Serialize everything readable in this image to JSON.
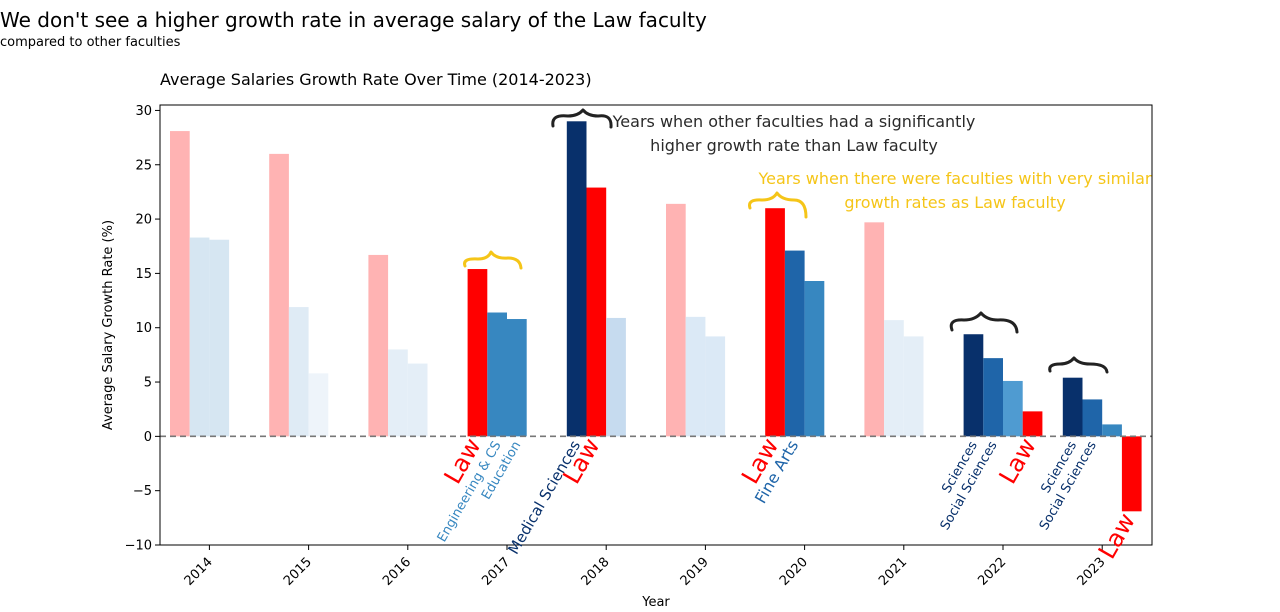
{
  "header": {
    "title": "We don't see a higher growth rate in average salary of the Law faculty",
    "subtitle": "compared to other faculties"
  },
  "chart_data": {
    "type": "bar",
    "title": "Average Salaries Growth Rate Over Time (2014-2023)",
    "xlabel": "Year",
    "ylabel": "Average Salary Growth Rate (%)",
    "ylim": [
      -10,
      30.5
    ],
    "yticks": [
      30,
      25,
      20,
      15,
      10,
      5,
      0,
      -5,
      -10
    ],
    "ytick_labels": [
      "30",
      "25",
      "20",
      "15",
      "10",
      "5",
      "0",
      "−5",
      "−10"
    ],
    "grid": false,
    "zero_line": {
      "value": 0,
      "style": "dashed",
      "color": "#777777"
    },
    "years": [
      {
        "label": "2014",
        "bars": [
          {
            "value": 28.1,
            "color": "#ffb3b3"
          },
          {
            "value": 18.3,
            "color": "#d6e6f2"
          },
          {
            "value": 18.1,
            "color": "#d6e6f2"
          }
        ]
      },
      {
        "label": "2015",
        "bars": [
          {
            "value": 26.0,
            "color": "#ffb3b3"
          },
          {
            "value": 11.9,
            "color": "#dfebf5"
          },
          {
            "value": 5.8,
            "color": "#eef4fa"
          }
        ]
      },
      {
        "label": "2016",
        "bars": [
          {
            "value": 16.7,
            "color": "#ffb3b3"
          },
          {
            "value": 8.0,
            "color": "#e4eef7"
          },
          {
            "value": 6.7,
            "color": "#e4eef7"
          }
        ]
      },
      {
        "label": "2017",
        "bars": [
          {
            "value": 15.4,
            "color": "#ff0000"
          },
          {
            "value": 11.4,
            "color": "#3787c0"
          },
          {
            "value": 10.8,
            "color": "#3787c0"
          }
        ]
      },
      {
        "label": "2018",
        "bars": [
          {
            "value": 29.0,
            "color": "#08306b"
          },
          {
            "value": 22.9,
            "color": "#ff0000"
          },
          {
            "value": 10.9,
            "color": "#c6dbef"
          }
        ]
      },
      {
        "label": "2019",
        "bars": [
          {
            "value": 21.4,
            "color": "#ffb3b3"
          },
          {
            "value": 11.0,
            "color": "#dbe9f6"
          },
          {
            "value": 9.2,
            "color": "#dbe9f6"
          }
        ]
      },
      {
        "label": "2020",
        "bars": [
          {
            "value": 21.0,
            "color": "#ff0000"
          },
          {
            "value": 17.1,
            "color": "#1f65a9"
          },
          {
            "value": 14.3,
            "color": "#3787c0"
          }
        ]
      },
      {
        "label": "2021",
        "bars": [
          {
            "value": 19.7,
            "color": "#ffb3b3"
          },
          {
            "value": 10.7,
            "color": "#e4eef7"
          },
          {
            "value": 9.2,
            "color": "#e4eef7"
          }
        ]
      },
      {
        "label": "2022",
        "bars": [
          {
            "value": 9.4,
            "color": "#08306b"
          },
          {
            "value": 7.2,
            "color": "#1f65a9"
          },
          {
            "value": 5.1,
            "color": "#4f9bd1"
          },
          {
            "value": 2.3,
            "color": "#ff0000"
          }
        ]
      },
      {
        "label": "2023",
        "bars": [
          {
            "value": 5.4,
            "color": "#08306b"
          },
          {
            "value": 3.4,
            "color": "#1f65a9"
          },
          {
            "value": 1.1,
            "color": "#3787c0"
          },
          {
            "value": -6.9,
            "color": "#ff0000"
          }
        ]
      }
    ],
    "bar_labels": [
      {
        "text": "Law",
        "color": "#ff0000",
        "size": 24,
        "year": 3,
        "bar": 0
      },
      {
        "text": "Engineering & CS",
        "color": "#3787c0",
        "size": 13,
        "year": 3,
        "bar": 1
      },
      {
        "text": "Education",
        "color": "#3787c0",
        "size": 13,
        "year": 3,
        "bar": 2
      },
      {
        "text": "Medical Sciences",
        "color": "#08306b",
        "size": 15,
        "year": 4,
        "bar": 0
      },
      {
        "text": "Law",
        "color": "#ff0000",
        "size": 24,
        "year": 4,
        "bar": 1
      },
      {
        "text": "Law",
        "color": "#ff0000",
        "size": 24,
        "year": 6,
        "bar": 0
      },
      {
        "text": "Fine Arts",
        "color": "#1f65a9",
        "size": 16,
        "year": 6,
        "bar": 1
      },
      {
        "text": "Sciences",
        "color": "#08306b",
        "size": 13,
        "year": 8,
        "bar": 0
      },
      {
        "text": "Social Sciences",
        "color": "#08306b",
        "size": 13,
        "year": 8,
        "bar": 1
      },
      {
        "text": "Law",
        "color": "#ff0000",
        "size": 24,
        "year": 8,
        "bar": 3
      },
      {
        "text": "Sciences",
        "color": "#08306b",
        "size": 13,
        "year": 9,
        "bar": 0
      },
      {
        "text": "Social Sciences",
        "color": "#08306b",
        "size": 13,
        "year": 9,
        "bar": 1
      },
      {
        "text": "Law",
        "color": "#ff0000",
        "size": 24,
        "year": 9,
        "bar": 3
      }
    ],
    "annotations": [
      {
        "lines": [
          "Years when other faculties had a significantly",
          "higher growth rate than Law faculty"
        ],
        "color": "#2a2a2a"
      },
      {
        "lines": [
          "Years when there were faculties with very similar",
          "growth rates as Law faculty"
        ],
        "color": "#f5c518"
      }
    ]
  }
}
